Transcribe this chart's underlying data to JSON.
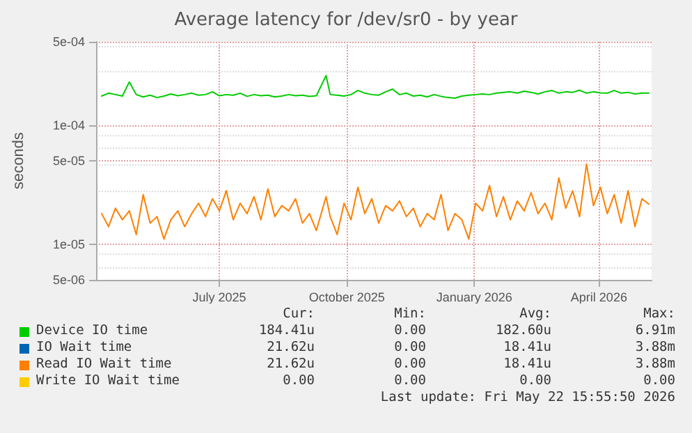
{
  "chart_data": {
    "type": "line",
    "title": "Average latency for /dev/sr0 - by year",
    "ylabel": "seconds",
    "log": "y",
    "grid": true,
    "legend": "bottom",
    "marker": "none",
    "line_style": "solid",
    "x": [
      "2025-04-22",
      "2025-04-27",
      "2025-05-02",
      "2025-05-07",
      "2025-05-12",
      "2025-05-17",
      "2025-05-22",
      "2025-05-27",
      "2025-06-01",
      "2025-06-06",
      "2025-06-11",
      "2025-06-16",
      "2025-06-21",
      "2025-06-26",
      "2025-07-01",
      "2025-07-06",
      "2025-07-11",
      "2025-07-16",
      "2025-07-21",
      "2025-07-26",
      "2025-07-31",
      "2025-08-05",
      "2025-08-10",
      "2025-08-15",
      "2025-08-20",
      "2025-08-25",
      "2025-08-30",
      "2025-09-04",
      "2025-09-09",
      "2025-09-14",
      "2025-09-19",
      "2025-09-24",
      "2025-10-01",
      "2025-10-04",
      "2025-10-09",
      "2025-10-14",
      "2025-10-19",
      "2025-10-24",
      "2025-10-29",
      "2025-11-03",
      "2025-11-08",
      "2025-11-13",
      "2025-11-18",
      "2025-11-23",
      "2025-11-28",
      "2025-12-03",
      "2025-12-08",
      "2025-12-13",
      "2025-12-18",
      "2025-12-23",
      "2025-12-28",
      "2026-01-02",
      "2026-01-07",
      "2026-01-12",
      "2026-01-17",
      "2026-01-22",
      "2026-01-27",
      "2026-02-01",
      "2026-02-06",
      "2026-02-11",
      "2026-02-16",
      "2026-02-21",
      "2026-02-26",
      "2026-03-03",
      "2026-03-08",
      "2026-03-13",
      "2026-03-18",
      "2026-03-23",
      "2026-03-28",
      "2026-04-02",
      "2026-04-07",
      "2026-04-12",
      "2026-04-17",
      "2026-04-22",
      "2026-04-27",
      "2026-05-02",
      "2026-05-07",
      "2026-05-12",
      "2026-05-17",
      "2026-05-22"
    ],
    "xlim": [
      "2025-04-18",
      "2026-05-24"
    ],
    "xticks": [
      {
        "value": "2025-07-16",
        "label": "July 2025"
      },
      {
        "value": "2025-10-16",
        "label": "October 2025"
      },
      {
        "value": "2026-01-16",
        "label": "January 2026"
      },
      {
        "value": "2026-04-16",
        "label": "April 2026"
      }
    ],
    "ylim": [
      5e-06,
      0.0005
    ],
    "yticks": [
      {
        "value": 5e-06,
        "label": "5e-06"
      },
      {
        "value": 1e-05,
        "label": "1e-05"
      },
      {
        "value": 5e-05,
        "label": "5e-05"
      },
      {
        "value": 0.0001,
        "label": "1e-04"
      },
      {
        "value": 0.0005,
        "label": "5e-04"
      }
    ],
    "series": [
      {
        "name": "Device IO time",
        "color": "#00cc00",
        "values": [
          0.000175,
          0.000185,
          0.00018,
          0.000175,
          0.00023,
          0.00018,
          0.000172,
          0.000178,
          0.00017,
          0.000175,
          0.000182,
          0.000176,
          0.00018,
          0.000185,
          0.000178,
          0.00018,
          0.00019,
          0.000176,
          0.00018,
          0.000178,
          0.000185,
          0.000174,
          0.00018,
          0.000176,
          0.000178,
          0.000172,
          0.000175,
          0.00018,
          0.000176,
          0.000178,
          0.000174,
          0.000176,
          0.00026,
          0.00018,
          0.000178,
          0.000175,
          0.00018,
          0.000195,
          0.000185,
          0.00018,
          0.000178,
          0.00019,
          0.0002,
          0.00018,
          0.000185,
          0.000175,
          0.000178,
          0.000172,
          0.00018,
          0.000174,
          0.00017,
          0.000168,
          0.000175,
          0.000178,
          0.00018,
          0.000182,
          0.00018,
          0.000185,
          0.000188,
          0.00019,
          0.000185,
          0.000192,
          0.000188,
          0.000182,
          0.00019,
          0.000195,
          0.000185,
          0.00019,
          0.000188,
          0.000196,
          0.000185,
          0.00019,
          0.000186,
          0.000185,
          0.000195,
          0.000185,
          0.000188,
          0.000182,
          0.000185,
          0.000185
        ]
      },
      {
        "name": "IO Wait time",
        "color": "#0066b3",
        "values": [
          null,
          null,
          null,
          null,
          null,
          null,
          null,
          null,
          null,
          null,
          null,
          null,
          null,
          null,
          null,
          null,
          null,
          null,
          null,
          null,
          null,
          null,
          null,
          null,
          null,
          null,
          null,
          null,
          null,
          null,
          null,
          null,
          null,
          null,
          null,
          null,
          null,
          null,
          null,
          null,
          null,
          null,
          null,
          null,
          null,
          null,
          null,
          null,
          null,
          null,
          null,
          null,
          null,
          null,
          null,
          null,
          null,
          null,
          null,
          null,
          null,
          null,
          null,
          null,
          null,
          null,
          null,
          null,
          null,
          null,
          null,
          null,
          null,
          null,
          null,
          null,
          null,
          null,
          null,
          null
        ]
      },
      {
        "name": "Read IO Wait time",
        "color": "#ff8000",
        "values": [
          1.8e-05,
          1.4e-05,
          2e-05,
          1.6e-05,
          1.9e-05,
          1.2e-05,
          2.6e-05,
          1.5e-05,
          1.7e-05,
          1.1e-05,
          1.6e-05,
          1.9e-05,
          1.4e-05,
          1.8e-05,
          2.2e-05,
          1.7e-05,
          2.4e-05,
          1.9e-05,
          2.8e-05,
          1.6e-05,
          2.2e-05,
          1.8e-05,
          2.5e-05,
          1.6e-05,
          2.9e-05,
          1.7e-05,
          2.1e-05,
          1.9e-05,
          2.4e-05,
          1.5e-05,
          1.8e-05,
          1.3e-05,
          2.5e-05,
          1.7e-05,
          1.2e-05,
          2.2e-05,
          1.6e-05,
          3e-05,
          1.8e-05,
          2.4e-05,
          1.5e-05,
          2.1e-05,
          1.9e-05,
          2.3e-05,
          1.7e-05,
          2e-05,
          1.4e-05,
          1.8e-05,
          1.6e-05,
          2.6e-05,
          1.3e-05,
          1.8e-05,
          1.6e-05,
          1.1e-05,
          2.2e-05,
          1.9e-05,
          3.1e-05,
          1.7e-05,
          2.5e-05,
          1.6e-05,
          2.3e-05,
          1.9e-05,
          2.7e-05,
          1.8e-05,
          2.2e-05,
          1.6e-05,
          3.6e-05,
          2e-05,
          2.8e-05,
          1.7e-05,
          4.7e-05,
          2.1e-05,
          3e-05,
          1.8e-05,
          2.6e-05,
          1.5e-05,
          2.8e-05,
          1.4e-05,
          2.4e-05,
          2.162e-05
        ]
      },
      {
        "name": "Write IO Wait time",
        "color": "#ffcc00",
        "values": [
          null,
          null,
          null,
          null,
          null,
          null,
          null,
          null,
          null,
          null,
          null,
          null,
          null,
          null,
          null,
          null,
          null,
          null,
          null,
          null,
          null,
          null,
          null,
          null,
          null,
          null,
          null,
          null,
          null,
          null,
          null,
          null,
          null,
          null,
          null,
          null,
          null,
          null,
          null,
          null,
          null,
          null,
          null,
          null,
          null,
          null,
          null,
          null,
          null,
          null,
          null,
          null,
          null,
          null,
          null,
          null,
          null,
          null,
          null,
          null,
          null,
          null,
          null,
          null,
          null,
          null,
          null,
          null,
          null,
          null,
          null,
          null,
          null,
          null,
          null,
          null,
          null,
          null,
          null,
          null
        ]
      }
    ],
    "annotations": [
      "Cur:",
      "Min:",
      "Avg:",
      "Max:",
      "184.41u",
      "0.00",
      "182.60u",
      "6.91m",
      "21.62u",
      "0.00",
      "18.41u",
      "3.88m",
      "21.62u",
      "0.00",
      "18.41u",
      "3.88m",
      "0.00",
      "0.00",
      "0.00",
      "0.00",
      "Last update: Fri May 22 15:55:50 2026"
    ]
  }
}
